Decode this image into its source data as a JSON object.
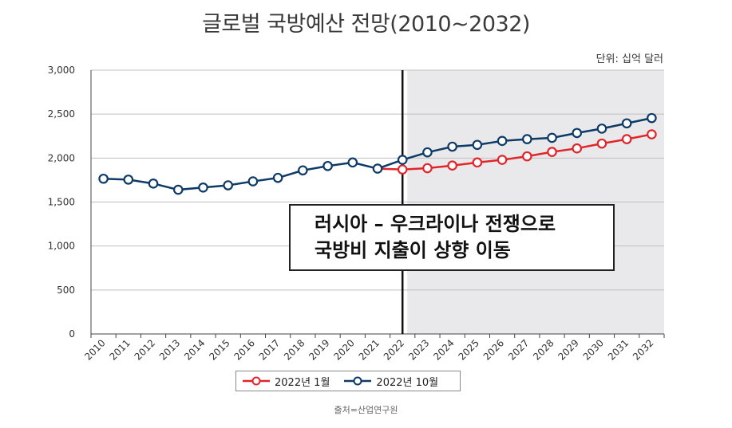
{
  "title": "글로벌 국방예산 전망(2010~2032)",
  "unit_label": "단위: 십억 달러",
  "source": "출처=산업연구원",
  "annotation": {
    "line1": "러시아 – 우크라이나 전쟁으로",
    "line2": "국방비 지출이 상향 이동"
  },
  "colors": {
    "series_jan": "#e0262b",
    "series_oct": "#0d3a66",
    "forecast_bg": "#e9e9eb",
    "grid": "#bfbfbf"
  },
  "chart_data": {
    "type": "line",
    "x": [
      "2010",
      "2011",
      "2012",
      "2013",
      "2014",
      "2015",
      "2016",
      "2017",
      "2018",
      "2019",
      "2020",
      "2021",
      "2022",
      "2023",
      "2024",
      "2025",
      "2026",
      "2027",
      "2028",
      "2029",
      "2030",
      "2031",
      "2032"
    ],
    "ylim": [
      0,
      3000
    ],
    "yticks": [
      "0",
      "500",
      "1,000",
      "1,500",
      "2,000",
      "2,500",
      "3,000"
    ],
    "grid": "horizontal",
    "legend_position": "bottom",
    "forecast_start": "2022",
    "series": [
      {
        "name": "2022년 1월",
        "color": "#e0262b",
        "values": [
          null,
          null,
          null,
          null,
          null,
          null,
          null,
          null,
          null,
          null,
          null,
          1880,
          1870,
          1885,
          1915,
          1950,
          1980,
          2020,
          2070,
          2110,
          2165,
          2215,
          2270
        ]
      },
      {
        "name": "2022년 10월",
        "color": "#0d3a66",
        "values": [
          1765,
          1755,
          1710,
          1640,
          1665,
          1690,
          1735,
          1775,
          1860,
          1910,
          1950,
          1880,
          1980,
          2065,
          2130,
          2150,
          2195,
          2215,
          2230,
          2285,
          2335,
          2395,
          2455
        ]
      }
    ]
  }
}
